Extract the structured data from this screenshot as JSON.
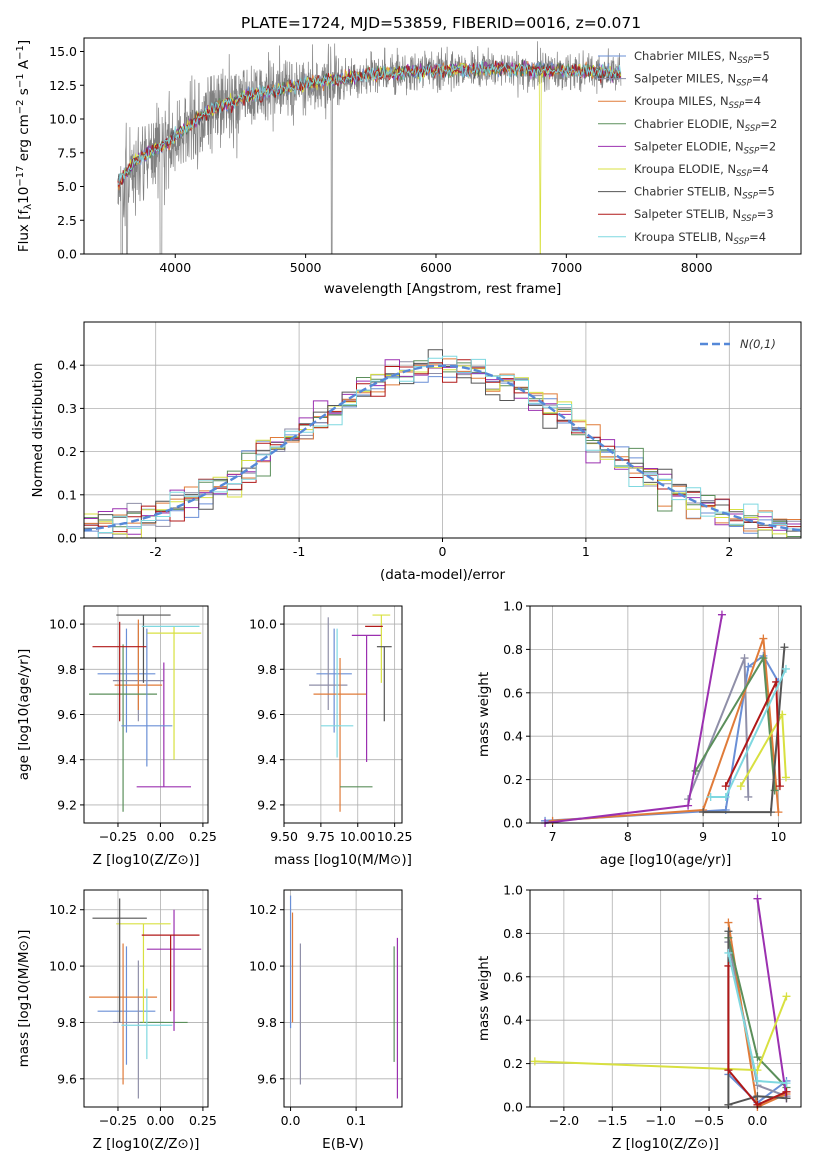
{
  "figure": {
    "title": "PLATE=1724, MJD=53859, FIBERID=0016, z=0.071"
  },
  "colors": {
    "data": "#808080",
    "series": [
      "#6a8fd6",
      "#8f8fa8",
      "#e07b39",
      "#5b8f5b",
      "#9b30b0",
      "#d8e040",
      "#555555",
      "#b01818",
      "#7fd8e0"
    ],
    "norm": "#5588d8"
  },
  "chart_data": [
    {
      "id": "spectrum",
      "type": "line",
      "xlabel": "wavelength [Angstrom, rest frame]",
      "ylabel_html": "Flux [f_λ 10^-17 erg cm^-2 s^-1 A^-1]",
      "xlim": [
        3300,
        8800
      ],
      "ylim": [
        0,
        16
      ],
      "xticks": [
        4000,
        5000,
        6000,
        7000,
        8000
      ],
      "yticks": [
        0.0,
        2.5,
        5.0,
        7.5,
        10.0,
        12.5,
        15.0
      ],
      "legend_position": "upper right",
      "series": [
        {
          "name": "Chabrier MILES, N",
          "sub": "SSP",
          "n": "=5"
        },
        {
          "name": "Salpeter MILES, N",
          "sub": "SSP",
          "n": "=4"
        },
        {
          "name": "Kroupa MILES, N",
          "sub": "SSP",
          "n": "=4"
        },
        {
          "name": "Chabrier ELODIE, N",
          "sub": "SSP",
          "n": "=2"
        },
        {
          "name": "Salpeter ELODIE, N",
          "sub": "SSP",
          "n": "=2"
        },
        {
          "name": "Kroupa ELODIE, N",
          "sub": "SSP",
          "n": "=4"
        },
        {
          "name": "Chabrier STELIB, N",
          "sub": "SSP",
          "n": "=5"
        },
        {
          "name": "Salpeter STELIB, N",
          "sub": "SSP",
          "n": "=3"
        },
        {
          "name": "Kroupa STELIB, N",
          "sub": "SSP",
          "n": "=4"
        }
      ],
      "continuum": {
        "x": [
          3550,
          3700,
          3900,
          4100,
          4300,
          4600,
          5000,
          5500,
          6000,
          6500,
          7000,
          7400,
          7800,
          8200,
          8600
        ],
        "y": [
          5.0,
          7.0,
          8.0,
          9.5,
          10.8,
          11.8,
          12.6,
          13.3,
          13.6,
          13.7,
          13.6,
          13.4,
          13.2,
          13.0,
          12.8
        ]
      }
    },
    {
      "id": "residuals",
      "type": "histogram",
      "xlabel": "(data-model)/error",
      "ylabel": "Normed distribution",
      "xlim": [
        -2.5,
        2.5
      ],
      "ylim": [
        0,
        0.5
      ],
      "xticks": [
        -2,
        -1,
        0,
        1,
        2
      ],
      "yticks": [
        0.0,
        0.1,
        0.2,
        0.3,
        0.4
      ],
      "legend": "N(0,1)",
      "bin_width": 0.1
    },
    {
      "id": "age_vs_Z",
      "type": "scatter",
      "xlabel": "Z [log10(Z/Z⊙)]",
      "ylabel": "age  [log10(age/yr)]",
      "xlim": [
        -0.45,
        0.28
      ],
      "ylim": [
        9.12,
        10.08
      ],
      "xticks": [
        -0.25,
        0.0,
        0.25
      ],
      "xticklabels": [
        "−0.25",
        "0.00",
        "0.25"
      ],
      "yticks": [
        9.2,
        9.4,
        9.6,
        9.8,
        10.0
      ],
      "points": [
        {
          "x": -0.2,
          "xerr": [
            0.17,
            0.17
          ],
          "y": 9.78,
          "yerr": [
            0.26,
            0.2
          ]
        },
        {
          "x": -0.13,
          "xerr": [
            0.15,
            0.15
          ],
          "y": 9.75,
          "yerr": [
            0.18,
            0.25
          ]
        },
        {
          "x": -0.13,
          "xerr": [
            0.14,
            0.14
          ],
          "y": 9.73,
          "yerr": [
            0.11,
            0.29
          ]
        },
        {
          "x": -0.22,
          "xerr": [
            0.2,
            0.2
          ],
          "y": 9.69,
          "yerr": [
            0.52,
            0.22
          ]
        },
        {
          "x": 0.02,
          "xerr": [
            0.16,
            0.16
          ],
          "y": 9.28,
          "yerr": [
            0.0,
            0.55
          ]
        },
        {
          "x": 0.08,
          "xerr": [
            0.16,
            0.16
          ],
          "y": 9.96,
          "yerr": [
            0.56,
            0.03
          ]
        },
        {
          "x": -0.1,
          "xerr": [
            0.16,
            0.16
          ],
          "y": 10.04,
          "yerr": [
            0.3,
            0.0
          ]
        },
        {
          "x": -0.24,
          "xerr": [
            0.16,
            0.16
          ],
          "y": 9.9,
          "yerr": [
            0.33,
            0.11
          ]
        },
        {
          "x": 0.06,
          "xerr": [
            0.17,
            0.17
          ],
          "y": 9.99,
          "yerr": [
            0.0,
            0.0
          ]
        },
        {
          "x": -0.08,
          "xerr": [
            0.15,
            0.15
          ],
          "y": 9.55,
          "yerr": [
            0.18,
            0.43
          ]
        }
      ]
    },
    {
      "id": "age_vs_mass",
      "type": "scatter",
      "xlabel": "mass [log10(M/M⊙)]",
      "xlim": [
        9.5,
        10.3
      ],
      "ylim": [
        9.12,
        10.08
      ],
      "xticks": [
        9.5,
        9.75,
        10.0,
        10.25
      ],
      "xticklabels": [
        "9.50",
        "9.75",
        "10.00",
        "10.25"
      ],
      "yticks": [
        9.2,
        9.4,
        9.6,
        9.8,
        10.0
      ],
      "points": [
        {
          "x": 9.84,
          "xerr": [
            0.12,
            0.12
          ],
          "y": 9.78,
          "yerr": [
            0.26,
            0.2
          ]
        },
        {
          "x": 9.8,
          "xerr": [
            0.13,
            0.13
          ],
          "y": 9.73,
          "yerr": [
            0.11,
            0.3
          ]
        },
        {
          "x": 9.88,
          "xerr": [
            0.18,
            0.18
          ],
          "y": 9.69,
          "yerr": [
            0.52,
            0.16
          ]
        },
        {
          "x": 9.99,
          "xerr": [
            0.11,
            0.11
          ],
          "y": 9.28,
          "yerr": [
            0.0,
            0.0
          ]
        },
        {
          "x": 10.06,
          "xerr": [
            0.1,
            0.1
          ],
          "y": 9.95,
          "yerr": [
            0.56,
            0.0
          ]
        },
        {
          "x": 10.16,
          "xerr": [
            0.06,
            0.06
          ],
          "y": 10.04,
          "yerr": [
            0.3,
            0.0
          ]
        },
        {
          "x": 10.18,
          "xerr": [
            0.05,
            0.05
          ],
          "y": 9.9,
          "yerr": [
            0.33,
            0.0
          ]
        },
        {
          "x": 10.11,
          "xerr": [
            0.06,
            0.06
          ],
          "y": 9.99,
          "yerr": [
            0.0,
            0.0
          ]
        },
        {
          "x": 9.86,
          "xerr": [
            0.11,
            0.11
          ],
          "y": 9.55,
          "yerr": [
            0.14,
            0.43
          ]
        }
      ]
    },
    {
      "id": "weight_vs_age",
      "type": "line",
      "xlabel": "age  [log10(age/yr)]",
      "ylabel": "mass weight",
      "xlim": [
        6.7,
        10.3
      ],
      "ylim": [
        0,
        1
      ],
      "xticks": [
        7,
        8,
        9,
        10
      ],
      "yticks": [
        0.0,
        0.2,
        0.4,
        0.6,
        0.8,
        1.0
      ],
      "series": [
        {
          "points": [
            [
              6.9,
              0.01
            ],
            [
              9.3,
              0.06
            ],
            [
              9.6,
              0.72
            ],
            [
              9.8,
              0.77
            ],
            [
              10.0,
              0.65
            ]
          ]
        },
        {
          "points": [
            [
              8.8,
              0.11
            ],
            [
              9.55,
              0.76
            ],
            [
              9.6,
              0.12
            ]
          ]
        },
        {
          "points": [
            [
              7.0,
              0.01
            ],
            [
              9.0,
              0.06
            ],
            [
              9.8,
              0.85
            ],
            [
              10.0,
              0.05
            ]
          ]
        },
        {
          "points": [
            [
              8.9,
              0.24
            ],
            [
              9.8,
              0.76
            ],
            [
              9.95,
              0.15
            ]
          ]
        },
        {
          "points": [
            [
              6.9,
              0.0
            ],
            [
              8.8,
              0.08
            ],
            [
              9.25,
              0.96
            ]
          ]
        },
        {
          "points": [
            [
              9.5,
              0.17
            ],
            [
              10.05,
              0.5
            ],
            [
              10.1,
              0.21
            ]
          ]
        },
        {
          "points": [
            [
              9.0,
              0.05
            ],
            [
              9.9,
              0.05
            ],
            [
              10.08,
              0.81
            ]
          ]
        },
        {
          "points": [
            [
              9.3,
              0.17
            ],
            [
              9.97,
              0.65
            ],
            [
              10.02,
              0.17
            ]
          ]
        },
        {
          "points": [
            [
              9.1,
              0.12
            ],
            [
              9.3,
              0.12
            ],
            [
              10.1,
              0.71
            ]
          ]
        }
      ]
    },
    {
      "id": "mass_vs_Z",
      "type": "scatter",
      "xlabel": "Z [log10(Z/Z⊙)]",
      "ylabel": "mass [log10(M/M⊙)]",
      "xlim": [
        -0.45,
        0.28
      ],
      "ylim": [
        9.5,
        10.27
      ],
      "xticks": [
        -0.25,
        0.0,
        0.25
      ],
      "xticklabels": [
        "−0.25",
        "0.00",
        "0.25"
      ],
      "yticks": [
        9.6,
        9.8,
        10.0,
        10.2
      ],
      "points": [
        {
          "x": -0.2,
          "xerr": [
            0.17,
            0.17
          ],
          "y": 9.84,
          "yerr": [
            0.19,
            0.23
          ]
        },
        {
          "x": -0.13,
          "xerr": [
            0.15,
            0.15
          ],
          "y": 9.8,
          "yerr": [
            0.27,
            0.22
          ]
        },
        {
          "x": -0.22,
          "xerr": [
            0.2,
            0.2
          ],
          "y": 9.89,
          "yerr": [
            0.31,
            0.19
          ]
        },
        {
          "x": 0.02,
          "xerr": [
            0.14,
            0.14
          ],
          "y": 9.8,
          "yerr": [
            0.0,
            0.0
          ]
        },
        {
          "x": 0.08,
          "xerr": [
            0.16,
            0.16
          ],
          "y": 10.06,
          "yerr": [
            0.29,
            0.14
          ]
        },
        {
          "x": -0.1,
          "xerr": [
            0.16,
            0.16
          ],
          "y": 10.15,
          "yerr": [
            0.35,
            0.0
          ]
        },
        {
          "x": -0.24,
          "xerr": [
            0.16,
            0.16
          ],
          "y": 10.17,
          "yerr": [
            0.37,
            0.07
          ]
        },
        {
          "x": 0.06,
          "xerr": [
            0.17,
            0.17
          ],
          "y": 10.11,
          "yerr": [
            0.27,
            0.0
          ]
        },
        {
          "x": -0.08,
          "xerr": [
            0.15,
            0.15
          ],
          "y": 9.79,
          "yerr": [
            0.12,
            0.13
          ]
        }
      ]
    },
    {
      "id": "mass_vs_ebv",
      "type": "scatter",
      "xlabel": "E(B-V)",
      "xlim": [
        -0.01,
        0.17
      ],
      "ylim": [
        9.5,
        10.27
      ],
      "xticks": [
        0.0,
        0.1
      ],
      "xticklabels": [
        "0.0",
        "0.1"
      ],
      "yticks": [
        9.6,
        9.8,
        10.0,
        10.2
      ],
      "points": [
        {
          "x": 0.0,
          "y": 10.18,
          "yerr": [
            0.4,
            0.07
          ]
        },
        {
          "x": 0.015,
          "y": 9.83,
          "yerr": [
            0.25,
            0.25
          ]
        },
        {
          "x": 0.003,
          "y": 9.95,
          "yerr": [
            0.15,
            0.24
          ]
        },
        {
          "x": 0.158,
          "y": 9.86,
          "yerr": [
            0.2,
            0.21
          ]
        },
        {
          "x": 0.163,
          "y": 9.82,
          "yerr": [
            0.29,
            0.28
          ]
        }
      ]
    },
    {
      "id": "weight_vs_Z",
      "type": "line",
      "xlabel": "Z [log10(Z/Z⊙)]",
      "ylabel": "mass weight",
      "xlim": [
        -2.35,
        0.45
      ],
      "ylim": [
        0,
        1
      ],
      "xticks": [
        -2.0,
        -1.5,
        -1.0,
        -0.5,
        0.0
      ],
      "xticklabels": [
        "−2.0",
        "−1.5",
        "−1.0",
        "−0.5",
        "0.0"
      ],
      "yticks": [
        0.0,
        0.2,
        0.4,
        0.6,
        0.8,
        1.0
      ],
      "series": [
        {
          "points": [
            [
              -0.3,
              0.15
            ],
            [
              0.0,
              0.02
            ],
            [
              0.3,
              0.12
            ]
          ]
        },
        {
          "points": [
            [
              -0.3,
              0.76
            ],
            [
              0.0,
              0.1
            ],
            [
              0.3,
              0.05
            ]
          ]
        },
        {
          "points": [
            [
              -0.3,
              0.85
            ],
            [
              0.0,
              0.0
            ],
            [
              0.3,
              0.06
            ]
          ]
        },
        {
          "points": [
            [
              -0.3,
              0.78
            ],
            [
              0.0,
              0.23
            ],
            [
              0.3,
              0.09
            ]
          ]
        },
        {
          "points": [
            [
              0.0,
              0.96
            ],
            [
              0.3,
              0.04
            ]
          ]
        },
        {
          "points": [
            [
              -2.3,
              0.21
            ],
            [
              0.0,
              0.17
            ],
            [
              0.3,
              0.51
            ]
          ]
        },
        {
          "points": [
            [
              -0.3,
              0.81
            ],
            [
              -0.3,
              0.01
            ],
            [
              0.0,
              0.05
            ],
            [
              0.3,
              0.04
            ]
          ]
        },
        {
          "points": [
            [
              -0.3,
              0.65
            ],
            [
              -0.3,
              0.17
            ],
            [
              0.0,
              0.01
            ],
            [
              0.3,
              0.07
            ]
          ]
        },
        {
          "points": [
            [
              -0.3,
              0.71
            ],
            [
              0.0,
              0.12
            ],
            [
              0.3,
              0.11
            ]
          ]
        }
      ]
    }
  ]
}
